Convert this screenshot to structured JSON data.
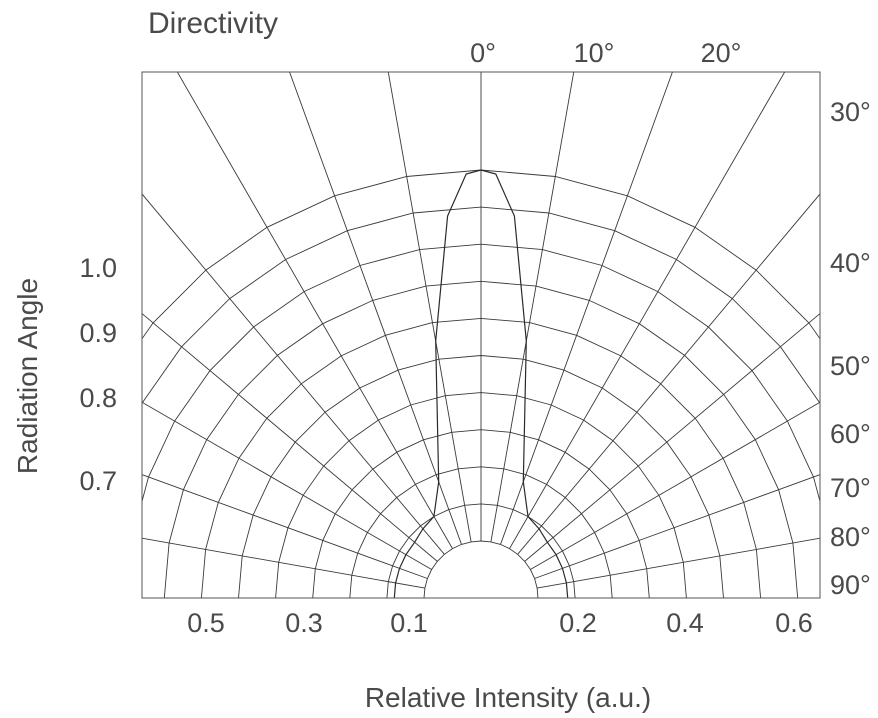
{
  "chart_data": {
    "type": "polar",
    "title": "Directivity",
    "xlabel": "Relative Intensity (a.u.)",
    "ylabel": "Radiation Angle",
    "angle_tick_labels": [
      "0°",
      "10°",
      "20°",
      "30°",
      "40°",
      "50°",
      "60°",
      "70°",
      "80°",
      "90°"
    ],
    "angle_ticks_deg": [
      0,
      10,
      20,
      30,
      40,
      50,
      60,
      70,
      80,
      90
    ],
    "left_tick_labels": [
      "1.0",
      "0.9",
      "0.8",
      "0.7"
    ],
    "bottom_left_tick_labels": [
      "0.5",
      "0.3",
      "0.1"
    ],
    "bottom_right_tick_labels": [
      "0.2",
      "0.4",
      "0.6"
    ],
    "radial_rings": [
      0.1,
      0.2,
      0.3,
      0.4,
      0.5,
      0.6,
      0.7,
      0.8,
      0.9,
      1.0
    ],
    "radial_lines_deg": [
      -90,
      -80,
      -70,
      -60,
      -50,
      -40,
      -30,
      -20,
      -10,
      0,
      10,
      20,
      30,
      40,
      50,
      60,
      70,
      80,
      90
    ],
    "series": [
      {
        "angles_deg": [
          -90,
          -80,
          -70,
          -60,
          -50,
          -40,
          -30,
          -20,
          -10,
          -5,
          -2,
          0,
          2,
          5,
          10,
          20,
          30,
          40,
          50,
          60,
          70,
          80,
          90
        ],
        "values": [
          0.08,
          0.08,
          0.08,
          0.08,
          0.08,
          0.09,
          0.1,
          0.18,
          0.55,
          0.88,
          0.99,
          1.0,
          0.99,
          0.88,
          0.55,
          0.18,
          0.1,
          0.09,
          0.08,
          0.08,
          0.08,
          0.08,
          0.08
        ]
      }
    ],
    "grid": true
  }
}
